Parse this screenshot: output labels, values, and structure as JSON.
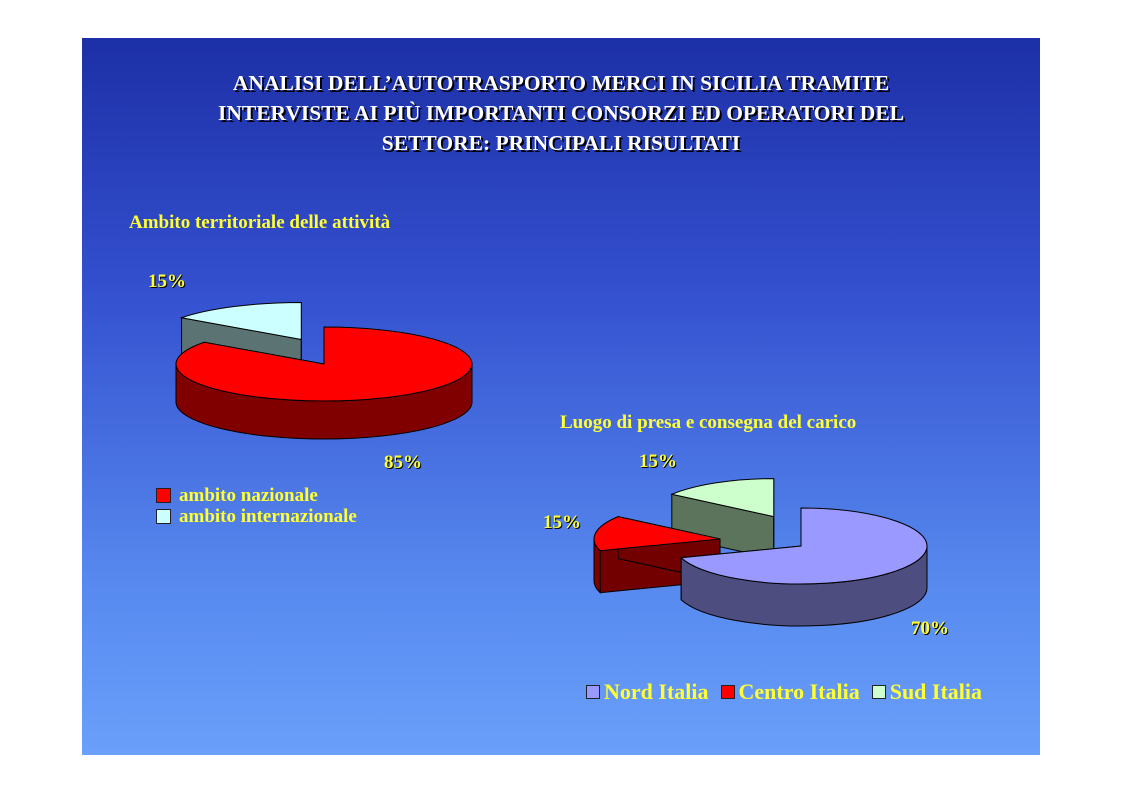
{
  "slide": {
    "title_lines": [
      "ANALISI DELL’AUTOTRASPORTO MERCI IN SICILIA TRAMITE",
      "INTERVISTE AI PIÙ IMPORTANTI CONSORZI ED OPERATORI DEL",
      "SETTORE: PRINCIPALI RISULTATI"
    ]
  },
  "chart_data": [
    {
      "type": "pie",
      "title": "Ambito territoriale delle attività",
      "categories": [
        "ambito nazionale",
        "ambito internazionale"
      ],
      "values": [
        85,
        15
      ],
      "labels": [
        "85%",
        "15%"
      ],
      "colors": [
        "#ff0000",
        "#ccffff"
      ],
      "legend": "bottom-left"
    },
    {
      "type": "pie",
      "title": "Luogo di presa e consegna del carico",
      "categories": [
        "Nord Italia",
        "Centro Italia",
        "Sud Italia"
      ],
      "values": [
        70,
        15,
        15
      ],
      "labels": [
        "70%",
        "15%",
        "15%"
      ],
      "colors": [
        "#9999ff",
        "#ff0000",
        "#ccffcc"
      ],
      "legend": "bottom"
    }
  ]
}
